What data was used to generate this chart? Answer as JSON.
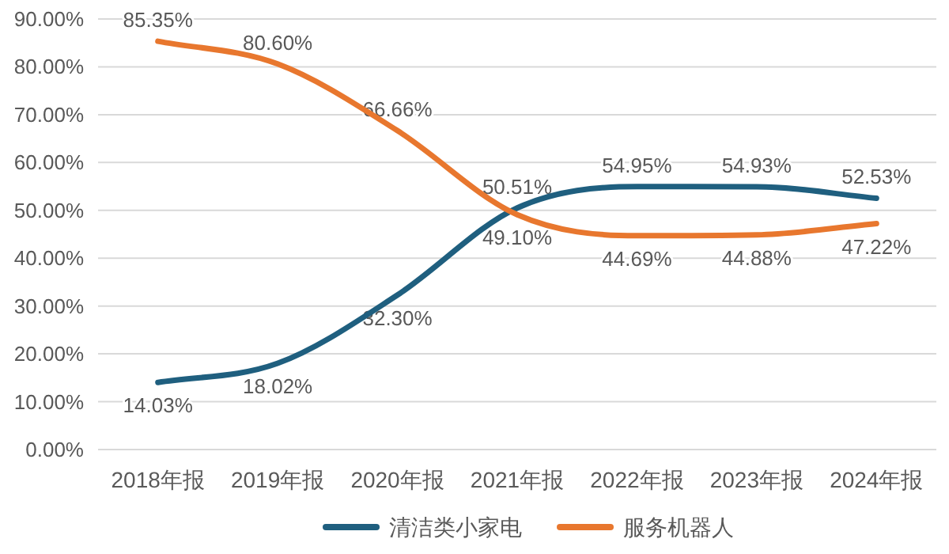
{
  "chart_data": {
    "type": "line",
    "categories": [
      "2018年报",
      "2019年报",
      "2020年报",
      "2021年报",
      "2022年报",
      "2023年报",
      "2024年报"
    ],
    "series": [
      {
        "name": "清洁类小家电",
        "color": "#1f5f7f",
        "values": [
          14.03,
          18.02,
          32.3,
          50.51,
          54.95,
          54.93,
          52.53
        ],
        "value_labels": [
          "14.03%",
          "18.02%",
          "32.30%",
          "50.51%",
          "54.95%",
          "54.93%",
          "52.53%"
        ]
      },
      {
        "name": "服务机器人",
        "color": "#e8772e",
        "values": [
          85.35,
          80.6,
          66.66,
          49.1,
          44.69,
          44.88,
          47.22
        ],
        "value_labels": [
          "85.35%",
          "80.60%",
          "66.66%",
          "49.10%",
          "44.69%",
          "44.88%",
          "47.22%"
        ]
      }
    ],
    "ylim": [
      0,
      90
    ],
    "yticks": [
      {
        "value": 0,
        "label": "0.00%"
      },
      {
        "value": 10,
        "label": "10.00%"
      },
      {
        "value": 20,
        "label": "20.00%"
      },
      {
        "value": 30,
        "label": "30.00%"
      },
      {
        "value": 40,
        "label": "40.00%"
      },
      {
        "value": 50,
        "label": "50.00%"
      },
      {
        "value": 60,
        "label": "60.00%"
      },
      {
        "value": 70,
        "label": "70.00%"
      },
      {
        "value": 80,
        "label": "80.00%"
      },
      {
        "value": 90,
        "label": "90.00%"
      }
    ],
    "grid": "y",
    "legend": "bottom",
    "marker": "none",
    "line_style": "solid"
  }
}
